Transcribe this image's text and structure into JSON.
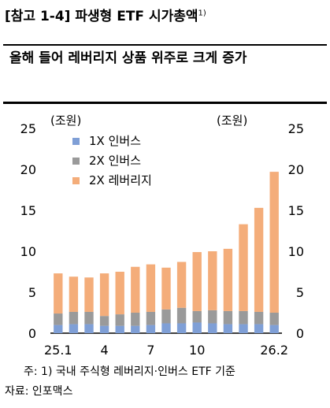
{
  "header": {
    "title": "[참고 1-4] 파생형 ETF 시가총액",
    "title_sup": "1)",
    "subtitle": "올해 들어 레버리지 상품 위주로 크게 증가"
  },
  "footer": {
    "note": "주: 1) 국내 주식형 레버리지·인버스 ETF 기준",
    "source": "자료: 인포맥스"
  },
  "chart_data": {
    "type": "bar",
    "stacked": true,
    "categories": [
      "25.1",
      "",
      "",
      "4",
      "",
      "",
      "7",
      "",
      "",
      "10",
      "",
      "",
      "",
      "",
      "26.2"
    ],
    "series": [
      {
        "name": "1X 인버스",
        "color": "#7f9fd6",
        "values": [
          1.0,
          1.1,
          1.1,
          0.9,
          0.9,
          0.9,
          1.0,
          1.2,
          1.2,
          1.3,
          1.2,
          1.1,
          1.1,
          1.1,
          1.0
        ]
      },
      {
        "name": "2X 인버스",
        "color": "#9a9a9a",
        "values": [
          1.4,
          1.5,
          1.5,
          1.2,
          1.4,
          1.6,
          1.6,
          1.7,
          1.9,
          1.4,
          1.6,
          1.6,
          1.6,
          1.5,
          1.5
        ]
      },
      {
        "name": "2X 레버리지",
        "color": "#f4ad7a",
        "values": [
          4.9,
          4.3,
          4.2,
          5.2,
          5.2,
          5.6,
          5.8,
          5.1,
          5.6,
          7.2,
          7.2,
          7.6,
          10.6,
          12.7,
          17.2
        ]
      }
    ],
    "ylim": [
      0,
      25
    ],
    "yticks": [
      0,
      5,
      10,
      15,
      20,
      25
    ],
    "ylabel_left": "(조원)",
    "ylabel_right": "(조원)",
    "legend_position": "top-left",
    "grid": false
  }
}
